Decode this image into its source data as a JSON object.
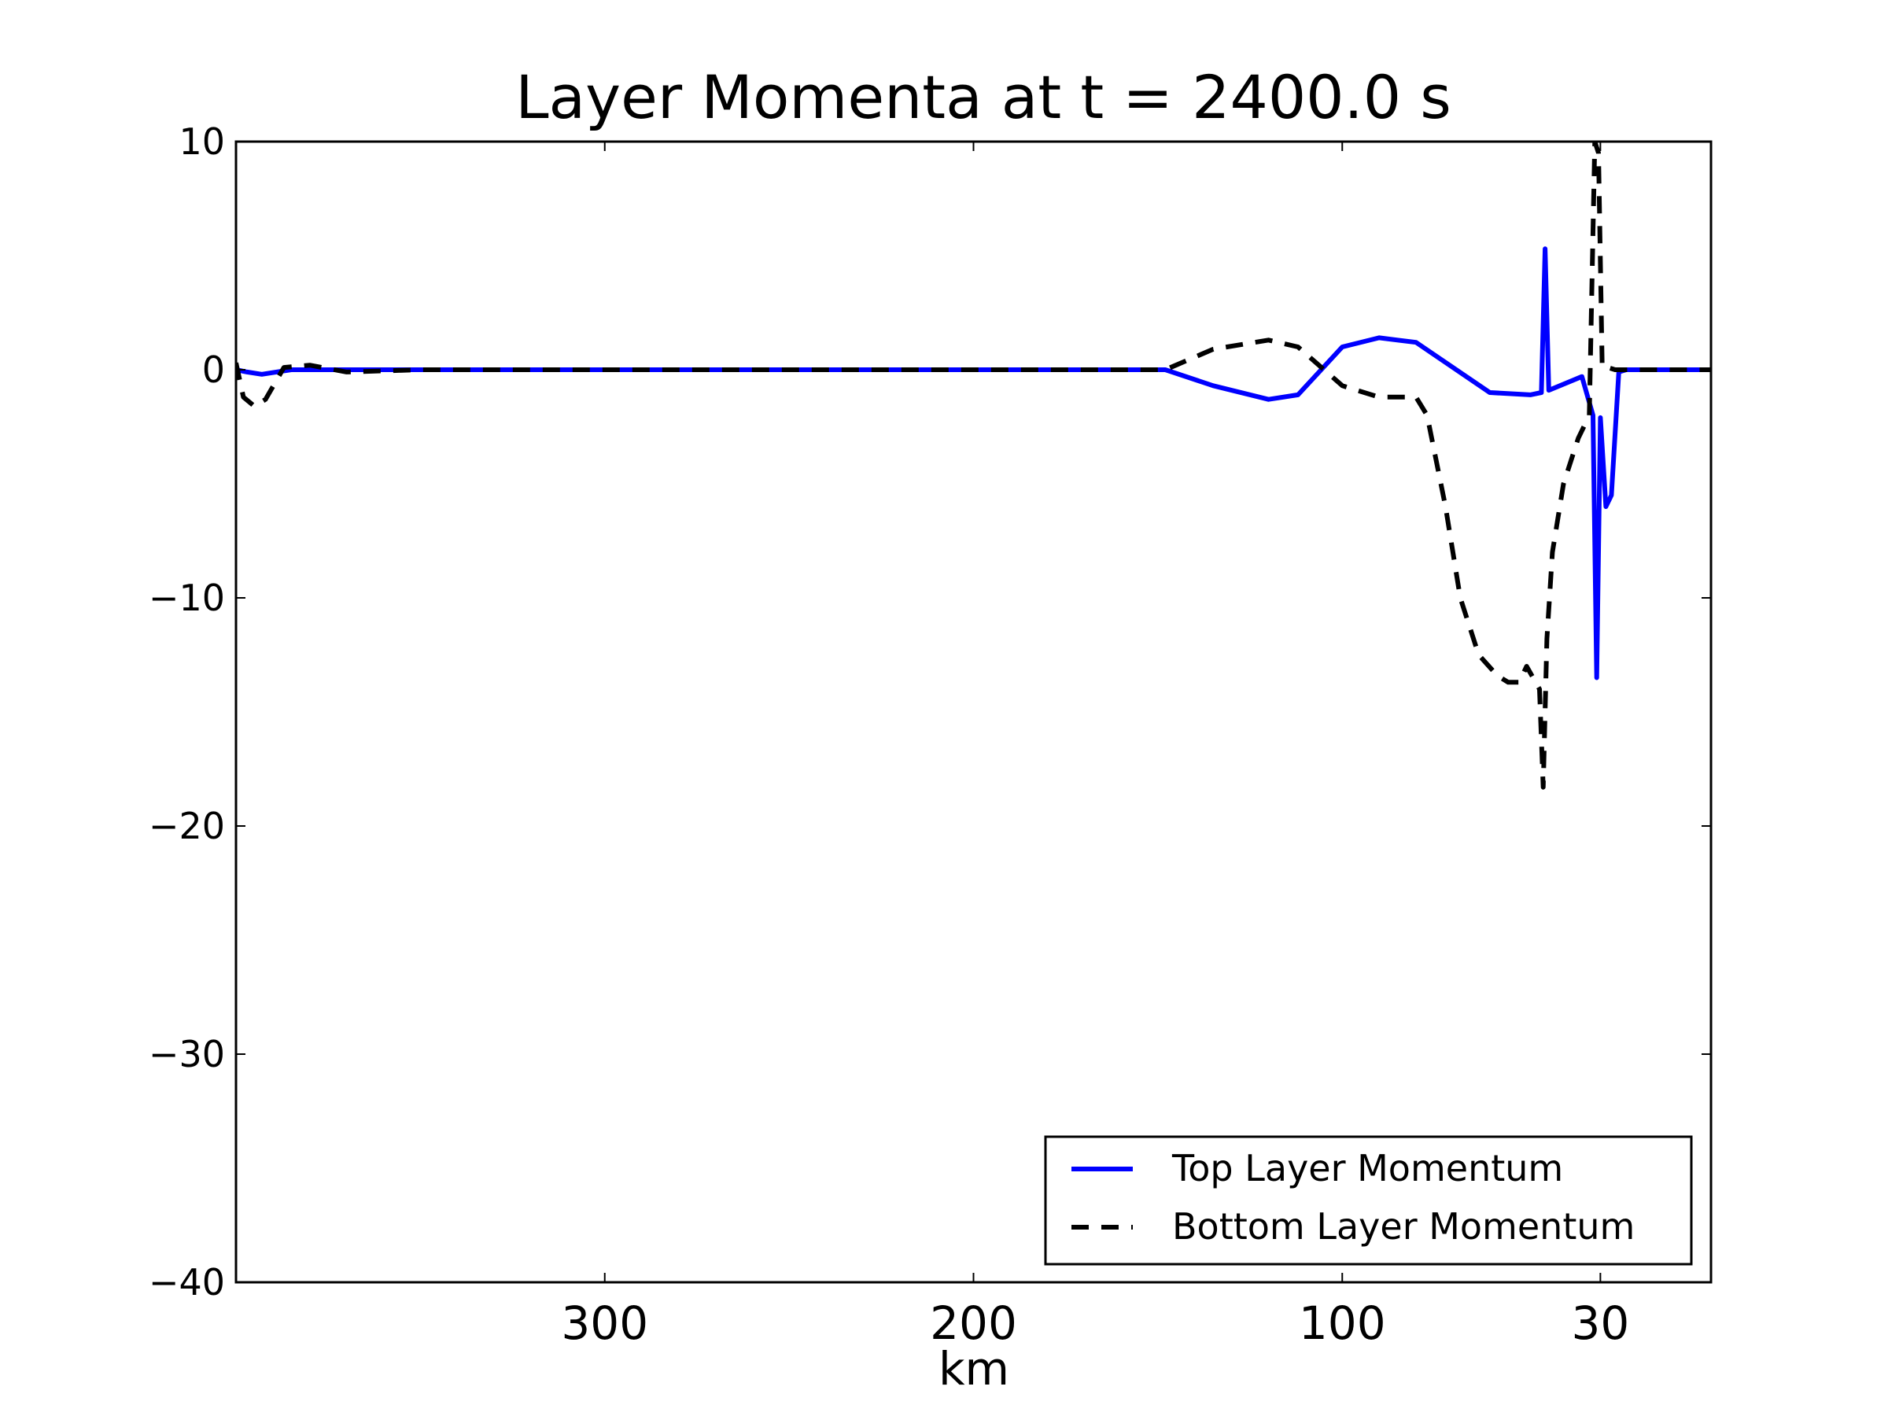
{
  "chart_data": {
    "type": "line",
    "title": "Layer Momenta at t = 2400.0 s",
    "xlabel": "km",
    "ylabel": "",
    "xlim": [
      400,
      0
    ],
    "ylim": [
      -40,
      10
    ],
    "x_axis_reversed": true,
    "xticks": [
      {
        "value": 300,
        "label": "300"
      },
      {
        "value": 200,
        "label": "200"
      },
      {
        "value": 100,
        "label": "100"
      },
      {
        "value": 30,
        "label": "30"
      }
    ],
    "yticks": [
      {
        "value": 10,
        "label": "10"
      },
      {
        "value": 0,
        "label": "0"
      },
      {
        "value": -10,
        "label": "−10"
      },
      {
        "value": -20,
        "label": "−20"
      },
      {
        "value": -30,
        "label": "−30"
      },
      {
        "value": -40,
        "label": "−40"
      }
    ],
    "grid": false,
    "legend_position": "lower-right",
    "series": [
      {
        "name": "Top Layer Momentum",
        "color": "#0000ff",
        "dash": "solid",
        "points": [
          [
            400,
            0
          ],
          [
            397,
            -0.1
          ],
          [
            393,
            -0.2
          ],
          [
            385,
            0
          ],
          [
            360,
            0
          ],
          [
            300,
            0
          ],
          [
            200,
            0
          ],
          [
            148,
            0
          ],
          [
            135,
            -0.7
          ],
          [
            120,
            -1.3
          ],
          [
            112,
            -1.1
          ],
          [
            100,
            1.0
          ],
          [
            90,
            1.4
          ],
          [
            80,
            1.2
          ],
          [
            60,
            -1.0
          ],
          [
            49,
            -1.1
          ],
          [
            46,
            -1.0
          ],
          [
            45,
            5.3
          ],
          [
            44,
            -0.9
          ],
          [
            35,
            -0.3
          ],
          [
            32,
            -2.0
          ],
          [
            31,
            -13.5
          ],
          [
            30,
            -2.1
          ],
          [
            28.5,
            -6.0
          ],
          [
            27,
            -5.5
          ],
          [
            25,
            -0.1
          ],
          [
            23,
            0
          ],
          [
            0,
            0
          ]
        ]
      },
      {
        "name": "Bottom Layer Momentum",
        "color": "#000000",
        "dash": "dashed",
        "points": [
          [
            400,
            0.3
          ],
          [
            398,
            -1.2
          ],
          [
            395,
            -1.6
          ],
          [
            392,
            -1.3
          ],
          [
            387,
            0.1
          ],
          [
            380,
            0.2
          ],
          [
            370,
            -0.1
          ],
          [
            350,
            0
          ],
          [
            300,
            0
          ],
          [
            200,
            0
          ],
          [
            148,
            0
          ],
          [
            135,
            0.9
          ],
          [
            120,
            1.3
          ],
          [
            112,
            1.0
          ],
          [
            100,
            -0.7
          ],
          [
            90,
            -1.2
          ],
          [
            80,
            -1.2
          ],
          [
            77,
            -2.0
          ],
          [
            72,
            -6.0
          ],
          [
            68,
            -10.0
          ],
          [
            63,
            -12.5
          ],
          [
            58,
            -13.4
          ],
          [
            55,
            -13.7
          ],
          [
            52,
            -13.7
          ],
          [
            50,
            -13.0
          ],
          [
            46.5,
            -14.0
          ],
          [
            45.5,
            -18.3
          ],
          [
            44.5,
            -11.8
          ],
          [
            43,
            -8.0
          ],
          [
            40,
            -5.0
          ],
          [
            36,
            -3.0
          ],
          [
            33,
            -2.0
          ],
          [
            31.5,
            10.0
          ],
          [
            30.5,
            9.5
          ],
          [
            29.5,
            0.1
          ],
          [
            28,
            0.1
          ],
          [
            26,
            0
          ],
          [
            0,
            0
          ]
        ]
      }
    ]
  }
}
